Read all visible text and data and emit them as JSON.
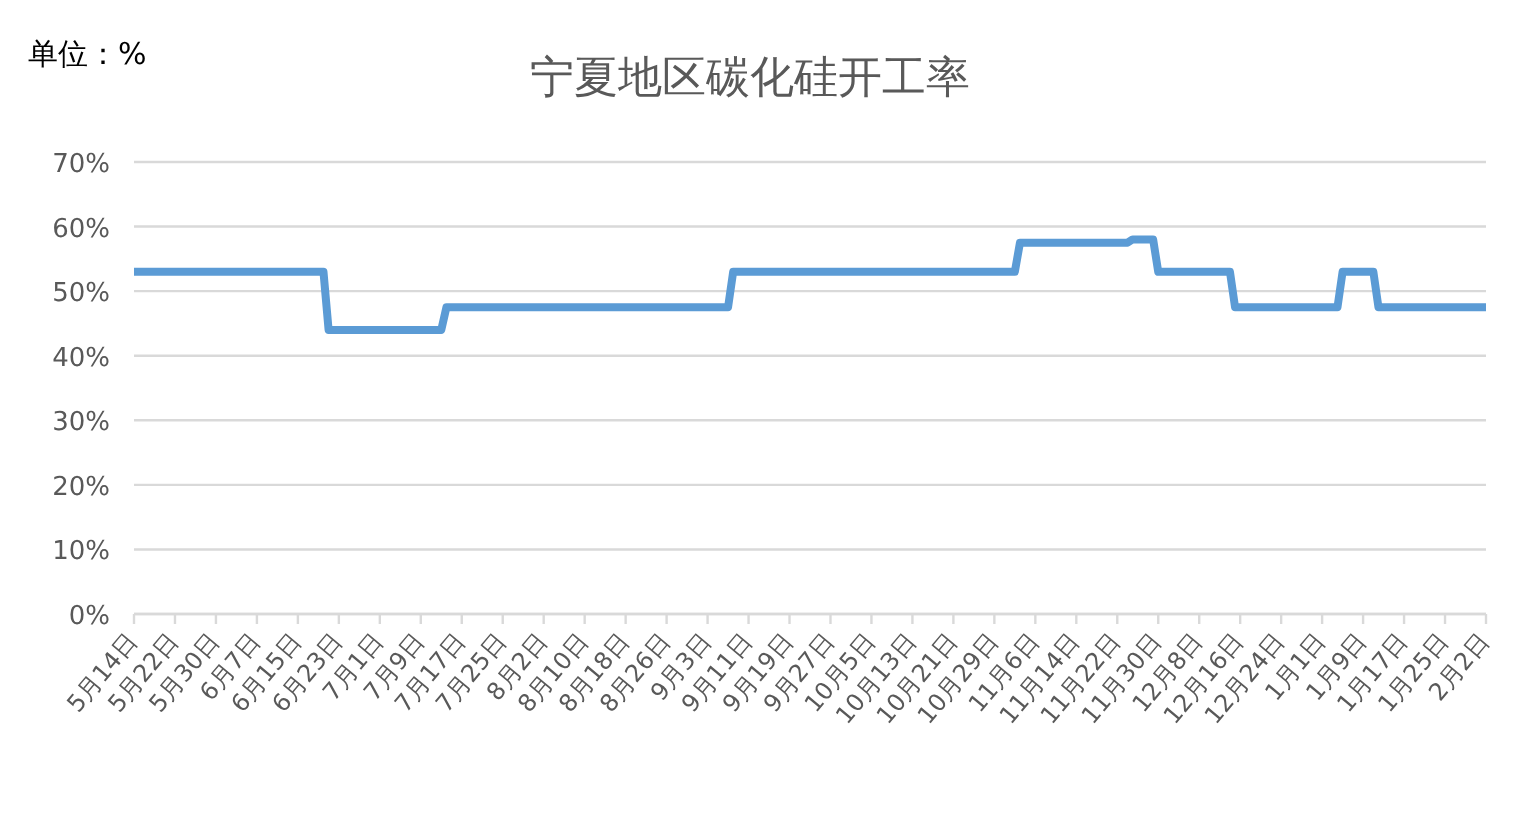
{
  "chart_data": {
    "type": "line",
    "title": "宁夏地区碳化硅开工率",
    "annotations": [
      "单位：%"
    ],
    "categories": [
      "5月14日",
      null,
      null,
      null,
      null,
      null,
      null,
      null,
      "5月22日",
      null,
      null,
      null,
      null,
      null,
      null,
      null,
      "5月30日",
      null,
      null,
      null,
      null,
      null,
      null,
      null,
      "6月7日",
      null,
      null,
      null,
      null,
      null,
      null,
      null,
      "6月15日",
      null,
      null,
      null,
      null,
      null,
      null,
      null,
      "6月23日",
      null,
      null,
      null,
      null,
      null,
      null,
      null,
      "7月1日",
      null,
      null,
      null,
      null,
      null,
      null,
      null,
      "7月9日",
      null,
      null,
      null,
      null,
      null,
      null,
      null,
      "7月17日",
      null,
      null,
      null,
      null,
      null,
      null,
      null,
      "7月25日",
      null,
      null,
      null,
      null,
      null,
      null,
      null,
      "8月2日",
      null,
      null,
      null,
      null,
      null,
      null,
      null,
      "8月10日",
      null,
      null,
      null,
      null,
      null,
      null,
      null,
      "8月18日",
      null,
      null,
      null,
      null,
      null,
      null,
      null,
      "8月26日",
      null,
      null,
      null,
      null,
      null,
      null,
      null,
      "9月3日",
      null,
      null,
      null,
      null,
      null,
      null,
      null,
      "9月11日",
      null,
      null,
      null,
      null,
      null,
      null,
      null,
      "9月19日",
      null,
      null,
      null,
      null,
      null,
      null,
      null,
      "9月27日",
      null,
      null,
      null,
      null,
      null,
      null,
      null,
      "10月5日",
      null,
      null,
      null,
      null,
      null,
      null,
      null,
      "10月13日",
      null,
      null,
      null,
      null,
      null,
      null,
      null,
      "10月21日",
      null,
      null,
      null,
      null,
      null,
      null,
      null,
      "10月29日",
      null,
      null,
      null,
      null,
      null,
      null,
      null,
      "11月6日",
      null,
      null,
      null,
      null,
      null,
      null,
      null,
      "11月14日",
      null,
      null,
      null,
      null,
      null,
      null,
      null,
      "11月22日",
      null,
      null,
      null,
      null,
      null,
      null,
      null,
      "11月30日",
      null,
      null,
      null,
      null,
      null,
      null,
      null,
      "12月8日",
      null,
      null,
      null,
      null,
      null,
      null,
      null,
      "12月16日",
      null,
      null,
      null,
      null,
      null,
      null,
      null,
      "12月24日",
      null,
      null,
      null,
      null,
      null,
      null,
      null,
      "1月1日",
      null,
      null,
      null,
      null,
      null,
      null,
      null,
      "1月9日",
      null,
      null,
      null,
      null,
      null,
      null,
      null,
      "1月17日",
      null,
      null,
      null,
      null,
      null,
      null,
      null,
      "1月25日",
      null,
      null,
      null,
      null,
      null,
      null,
      null,
      "2月2日"
    ],
    "values": [
      53,
      53,
      53,
      53,
      53,
      53,
      53,
      53,
      53,
      53,
      53,
      53,
      53,
      53,
      53,
      53,
      53,
      53,
      53,
      53,
      53,
      53,
      53,
      53,
      53,
      53,
      53,
      53,
      53,
      53,
      53,
      53,
      53,
      53,
      53,
      53,
      53,
      53,
      44,
      44,
      44,
      44,
      44,
      44,
      44,
      44,
      44,
      44,
      44,
      44,
      44,
      44,
      44,
      44,
      44,
      44,
      44,
      44,
      44,
      44,
      44,
      47.5,
      47.5,
      47.5,
      47.5,
      47.5,
      47.5,
      47.5,
      47.5,
      47.5,
      47.5,
      47.5,
      47.5,
      47.5,
      47.5,
      47.5,
      47.5,
      47.5,
      47.5,
      47.5,
      47.5,
      47.5,
      47.5,
      47.5,
      47.5,
      47.5,
      47.5,
      47.5,
      47.5,
      47.5,
      47.5,
      47.5,
      47.5,
      47.5,
      47.5,
      47.5,
      47.5,
      47.5,
      47.5,
      47.5,
      47.5,
      47.5,
      47.5,
      47.5,
      47.5,
      47.5,
      47.5,
      47.5,
      47.5,
      47.5,
      47.5,
      47.5,
      47.5,
      47.5,
      47.5,
      47.5,
      47.5,
      53,
      53,
      53,
      53,
      53,
      53,
      53,
      53,
      53,
      53,
      53,
      53,
      53,
      53,
      53,
      53,
      53,
      53,
      53,
      53,
      53,
      53,
      53,
      53,
      53,
      53,
      53,
      53,
      53,
      53,
      53,
      53,
      53,
      53,
      53,
      53,
      53,
      53,
      53,
      53,
      53,
      53,
      53,
      53,
      53,
      53,
      53,
      53,
      53,
      53,
      53,
      53,
      53,
      53,
      53,
      53,
      57.5,
      57.5,
      57.5,
      57.5,
      57.5,
      57.5,
      57.5,
      57.5,
      57.5,
      57.5,
      57.5,
      57.5,
      57.5,
      57.5,
      57.5,
      57.5,
      57.5,
      57.5,
      57.5,
      57.5,
      57.5,
      57.5,
      58,
      58,
      58,
      58,
      58,
      53,
      53,
      53,
      53,
      53,
      53,
      53,
      53,
      53,
      53,
      53,
      53,
      53,
      53,
      53,
      47.5,
      47.5,
      47.5,
      47.5,
      47.5,
      47.5,
      47.5,
      47.5,
      47.5,
      47.5,
      47.5,
      47.5,
      47.5,
      47.5,
      47.5,
      47.5,
      47.5,
      47.5,
      47.5,
      47.5,
      47.5,
      53,
      53,
      53,
      53,
      53,
      53,
      53,
      47.5,
      47.5,
      47.5,
      47.5,
      47.5,
      47.5,
      47.5,
      47.5,
      47.5,
      47.5,
      47.5,
      47.5,
      47.5,
      47.5,
      47.5,
      47.5,
      47.5,
      47.5,
      47.5,
      47.5,
      47.5,
      47.5
    ],
    "color": "#5b9bd5",
    "line_style": "solid",
    "ylim": [
      0,
      70
    ],
    "yticks": [
      {
        "value": 0,
        "label": "0%"
      },
      {
        "value": 10,
        "label": "10%"
      },
      {
        "value": 20,
        "label": "20%"
      },
      {
        "value": 30,
        "label": "30%"
      },
      {
        "value": 40,
        "label": "40%"
      },
      {
        "value": 50,
        "label": "50%"
      },
      {
        "value": 60,
        "label": "60%"
      },
      {
        "value": 70,
        "label": "70%"
      }
    ],
    "grid": "y"
  }
}
